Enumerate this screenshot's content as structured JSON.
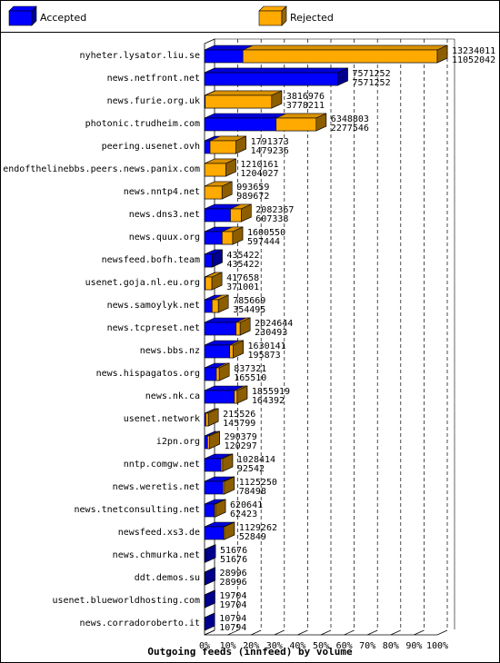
{
  "chart_data": {
    "type": "bar",
    "title": "Outgoing feeds (innfeed) by volume",
    "legend": {
      "placement": "top",
      "entries": [
        {
          "name": "Accepted",
          "color": "#0000ff"
        },
        {
          "name": "Rejected",
          "color": "#ffaa00"
        }
      ]
    },
    "orientation": "horizontal",
    "x_ticks": [
      "0%",
      "10%",
      "20%",
      "30%",
      "40%",
      "50%",
      "60%",
      "70%",
      "80%",
      "90%",
      "100%"
    ],
    "categories": [
      "nyheter.lysator.liu.se",
      "news.netfront.net",
      "news.furie.org.uk",
      "photonic.trudheim.com",
      "peering.usenet.ovh",
      "endofthelinebbs.peers.news.panix.com",
      "news.nntp4.net",
      "news.dns3.net",
      "news.quux.org",
      "newsfeed.bofh.team",
      "usenet.goja.nl.eu.org",
      "news.samoylyk.net",
      "news.tcpreset.net",
      "news.bbs.nz",
      "news.hispagatos.org",
      "news.nk.ca",
      "usenet.network",
      "i2pn.org",
      "nntp.comgw.net",
      "news.weretis.net",
      "news.tnetconsulting.net",
      "newsfeed.xs3.de",
      "news.chmurka.net",
      "ddt.demos.su",
      "usenet.blueworldhosting.com",
      "news.corradoroberto.it"
    ],
    "series": [
      {
        "name": "Accepted",
        "color": "#0000ff",
        "values": [
          13234011,
          7571252,
          3816976,
          6348803,
          1791373,
          1210161,
          993659,
          2082367,
          1600550,
          435422,
          417658,
          785669,
          2024644,
          1630141,
          837321,
          1855919,
          215526,
          290379,
          1028414,
          1125250,
          620641,
          1129262,
          51676,
          28996,
          19704,
          10794
        ]
      },
      {
        "name": "Rejected",
        "color": "#ffaa00",
        "values": [
          11052042,
          7571252,
          3778211,
          2277546,
          1479236,
          1204027,
          989672,
          607338,
          597444,
          435422,
          371001,
          354495,
          230493,
          195873,
          165510,
          164392,
          145799,
          120297,
          92542,
          78498,
          62423,
          52849,
          51676,
          28996,
          19704,
          10794
        ]
      }
    ],
    "value_labels": [
      [
        "13234011",
        "11052042"
      ],
      [
        "7571252",
        "7571252"
      ],
      [
        "3816976",
        "3778211"
      ],
      [
        "6348803",
        "2277546"
      ],
      [
        "1791373",
        "1479236"
      ],
      [
        "1210161",
        "1204027"
      ],
      [
        "993659",
        "989672"
      ],
      [
        "2082367",
        "607338"
      ],
      [
        "1600550",
        "597444"
      ],
      [
        "435422",
        "435422"
      ],
      [
        "417658",
        "371001"
      ],
      [
        "785669",
        "354495"
      ],
      [
        "2024644",
        "230493"
      ],
      [
        "1630141",
        "195873"
      ],
      [
        "837321",
        "165510"
      ],
      [
        "1855919",
        "164392"
      ],
      [
        "215526",
        "145799"
      ],
      [
        "290379",
        "120297"
      ],
      [
        "1028414",
        "92542"
      ],
      [
        "1125250",
        "78498"
      ],
      [
        "620641",
        "62423"
      ],
      [
        "1129262",
        "52849"
      ],
      [
        "51676",
        "51676"
      ],
      [
        "28996",
        "28996"
      ],
      [
        "19704",
        "19704"
      ],
      [
        "10794",
        "10794"
      ]
    ],
    "xlim": [
      0,
      100
    ],
    "grid": "vertical dashed"
  }
}
